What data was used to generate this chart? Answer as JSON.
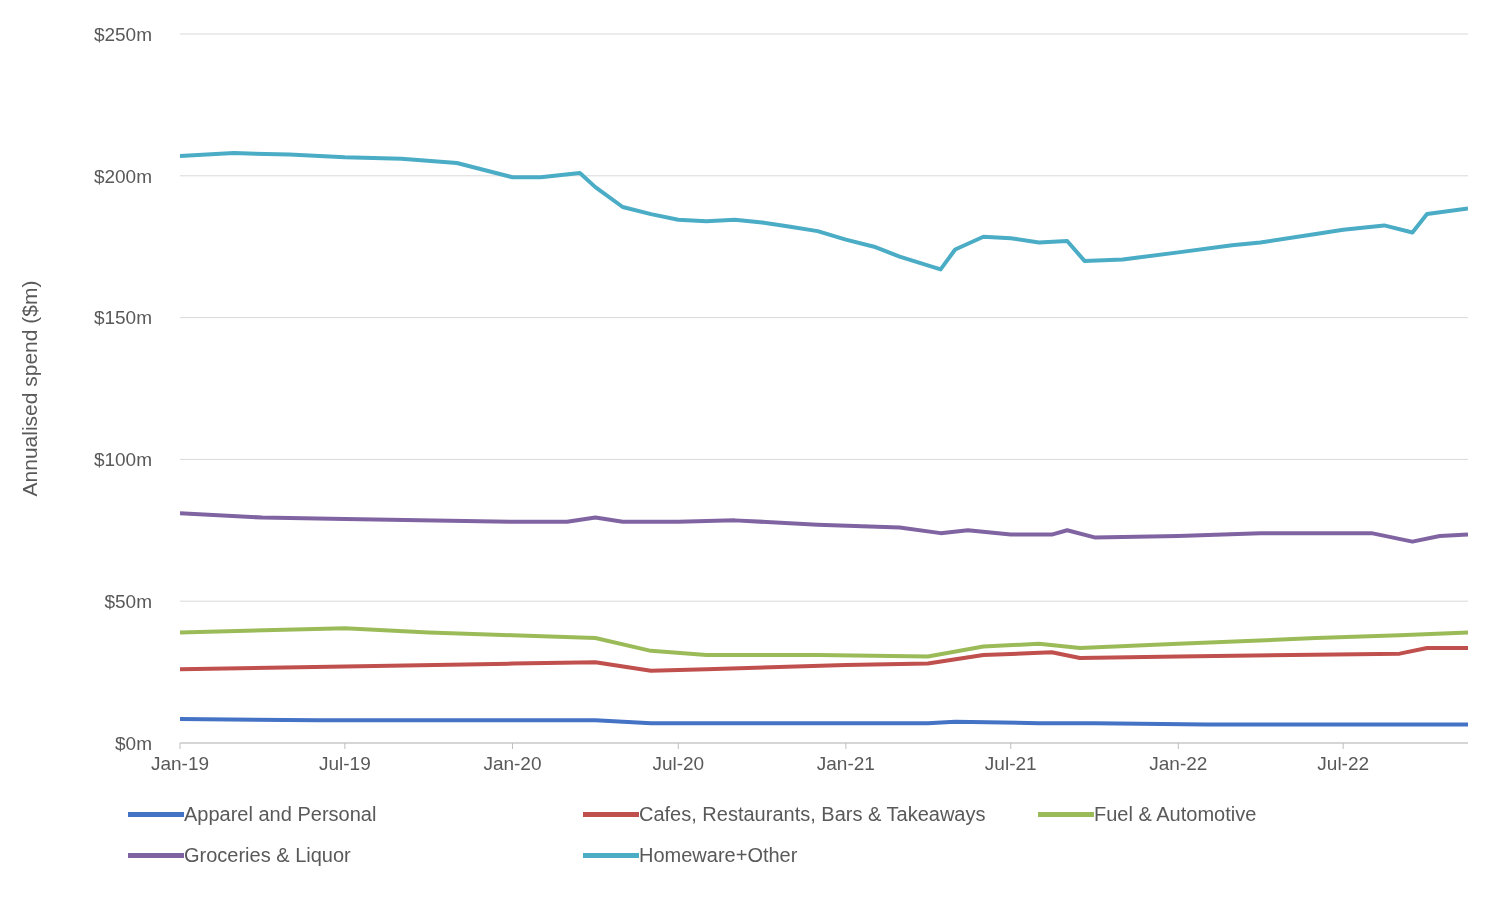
{
  "chart_data": {
    "type": "line",
    "ylabel": "Annualised spend ($m)",
    "xlim": [
      "2019-01",
      "2022-11-15"
    ],
    "xticks": [
      {
        "value": "2019-01",
        "label": "Jan-19"
      },
      {
        "value": "2019-07",
        "label": "Jul-19"
      },
      {
        "value": "2020-01",
        "label": "Jan-20"
      },
      {
        "value": "2020-07",
        "label": "Jul-20"
      },
      {
        "value": "2021-01",
        "label": "Jan-21"
      },
      {
        "value": "2021-07",
        "label": "Jul-21"
      },
      {
        "value": "2022-01",
        "label": "Jan-22"
      },
      {
        "value": "2022-07",
        "label": "Jul-22"
      }
    ],
    "ylim": [
      0,
      250
    ],
    "yticks": [
      {
        "value": 0,
        "label": "$0m"
      },
      {
        "value": 50,
        "label": "$50m"
      },
      {
        "value": 100,
        "label": "$100m"
      },
      {
        "value": 150,
        "label": "$150m"
      },
      {
        "value": 200,
        "label": "$200m"
      },
      {
        "value": 250,
        "label": "$250m"
      }
    ],
    "grid": "y",
    "legend": "bottom",
    "marker": "none",
    "line_style": "solid",
    "series": [
      {
        "name": "Apparel and Personal",
        "color": "#4472c4",
        "x": [
          "2019-01",
          "2019-06",
          "2020-04",
          "2020-06",
          "2021-04",
          "2021-05",
          "2021-08",
          "2021-10",
          "2022-02",
          "2022-11-15"
        ],
        "values": [
          8.5,
          8,
          8,
          7,
          7,
          7.5,
          7,
          7,
          6.5,
          6.5
        ]
      },
      {
        "name": "Cafes, Restaurants, Bars & Takeaways",
        "color": "#c0504d",
        "x": [
          "2019-01",
          "2019-07",
          "2020-01",
          "2020-04",
          "2020-06",
          "2020-08",
          "2021-01",
          "2021-04",
          "2021-06",
          "2021-08-15",
          "2021-09-15",
          "2022-01",
          "2022-09",
          "2022-10",
          "2022-11-15"
        ],
        "values": [
          26,
          27,
          28,
          28.5,
          25.5,
          26,
          27.5,
          28,
          31,
          32,
          30,
          30.5,
          31.5,
          33.5,
          33.5
        ]
      },
      {
        "name": "Fuel & Automotive",
        "color": "#9bbb59",
        "x": [
          "2019-01",
          "2019-07",
          "2019-10",
          "2020-01",
          "2020-04",
          "2020-06",
          "2020-08",
          "2020-12",
          "2021-04",
          "2021-06",
          "2021-08",
          "2021-09-15",
          "2022-01",
          "2022-06",
          "2022-09",
          "2022-11-15"
        ],
        "values": [
          39,
          40.5,
          39,
          38,
          37,
          32.5,
          31,
          31,
          30.5,
          34,
          35,
          33.5,
          35,
          37,
          38,
          39
        ]
      },
      {
        "name": "Groceries & Liquor",
        "color": "#8064a2",
        "x": [
          "2019-01",
          "2019-04",
          "2019-07",
          "2020-01",
          "2020-03",
          "2020-04",
          "2020-05",
          "2020-07",
          "2020-09",
          "2020-12",
          "2021-03",
          "2021-04-15",
          "2021-05-15",
          "2021-07",
          "2021-08-15",
          "2021-09",
          "2021-10",
          "2022-01",
          "2022-04",
          "2022-08",
          "2022-09-15",
          "2022-10-15",
          "2022-11-15"
        ],
        "values": [
          81,
          79.5,
          79,
          78,
          78,
          79.5,
          78,
          78,
          78.5,
          77,
          76,
          74,
          75,
          73.5,
          73.5,
          75,
          72.5,
          73,
          74,
          74,
          71,
          73,
          73.5
        ]
      },
      {
        "name": "Homeware+Other",
        "color": "#4bacc6",
        "x": [
          "2019-01",
          "2019-03",
          "2019-05",
          "2019-07",
          "2019-09",
          "2019-11",
          "2020-01",
          "2020-02",
          "2020-03-15",
          "2020-04",
          "2020-05",
          "2020-06",
          "2020-07",
          "2020-08",
          "2020-09",
          "2020-10",
          "2020-11",
          "2020-12",
          "2021-01",
          "2021-02",
          "2021-03",
          "2021-04-15",
          "2021-05",
          "2021-06",
          "2021-07",
          "2021-08",
          "2021-09",
          "2021-09-20",
          "2021-11",
          "2022-01",
          "2022-03",
          "2022-04",
          "2022-06",
          "2022-07",
          "2022-08-15",
          "2022-09-15",
          "2022-10",
          "2022-11-15"
        ],
        "values": [
          207,
          208,
          207.5,
          206.5,
          206,
          204.5,
          199.5,
          199.5,
          201,
          196,
          189,
          186.5,
          184.5,
          184,
          184.5,
          183.5,
          182,
          180.5,
          177.5,
          175,
          171.5,
          167,
          174,
          178.5,
          178,
          176.5,
          177,
          170,
          170.5,
          173,
          175.5,
          176.5,
          179.5,
          181,
          182.5,
          180,
          186.5,
          188.5
        ]
      }
    ]
  }
}
